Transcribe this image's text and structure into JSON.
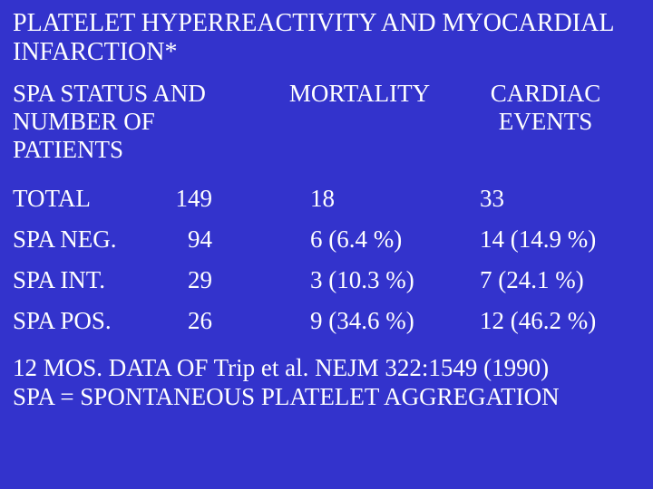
{
  "title": "PLATELET HYPERREACTIVITY AND MYOCARDIAL INFARCTION*",
  "headers": {
    "col1": "SPA STATUS AND NUMBER OF PATIENTS",
    "col2": "MORTALITY",
    "col3": "CARDIAC EVENTS"
  },
  "rows": [
    {
      "label": "TOTAL",
      "n": "149",
      "mortality": "18",
      "events": "33"
    },
    {
      "label": "SPA NEG.",
      "n": "94",
      "mortality": "6 (6.4  %)",
      "events": "14   (14.9 %)"
    },
    {
      "label": "SPA INT.",
      "n": "29",
      "mortality": "3 (10.3  %)",
      "events": "7    (24.1 %)"
    },
    {
      "label": "SPA POS.",
      "n": "26",
      "mortality": "9 (34.6 %)",
      "events": "12   (46.2 %)"
    }
  ],
  "footer": {
    "line1": "12 MOS. DATA OF Trip et al. NEJM 322:1549 (1990)",
    "line2": "SPA = SPONTANEOUS PLATELET AGGREGATION"
  },
  "colors": {
    "background": "#3333cc",
    "text": "#ffffff"
  },
  "typography": {
    "font_family": "Times New Roman",
    "title_fontsize": 28,
    "body_fontsize": 27
  }
}
